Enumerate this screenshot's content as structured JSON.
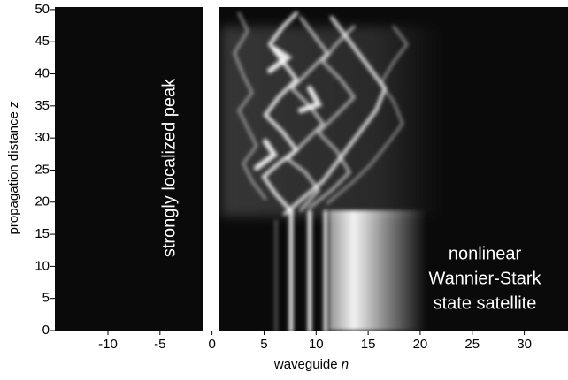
{
  "chart_data": {
    "type": "heatmap",
    "xlabel": "waveguide",
    "xlabel_symbol": "n",
    "ylabel": "propagation distance",
    "ylabel_symbol": "z",
    "xlim": [
      -15.1,
      34.2
    ],
    "xticks": [
      -10,
      -5,
      0,
      5,
      10,
      15,
      20,
      25,
      30
    ],
    "ylim": [
      0,
      50.4
    ],
    "yticks": [
      0,
      5,
      10,
      15,
      20,
      25,
      30,
      35,
      40,
      45,
      50
    ],
    "annotations": [
      "strongly localized peak",
      "nonlinear",
      "Wannier-Stark",
      "state satellite"
    ]
  }
}
